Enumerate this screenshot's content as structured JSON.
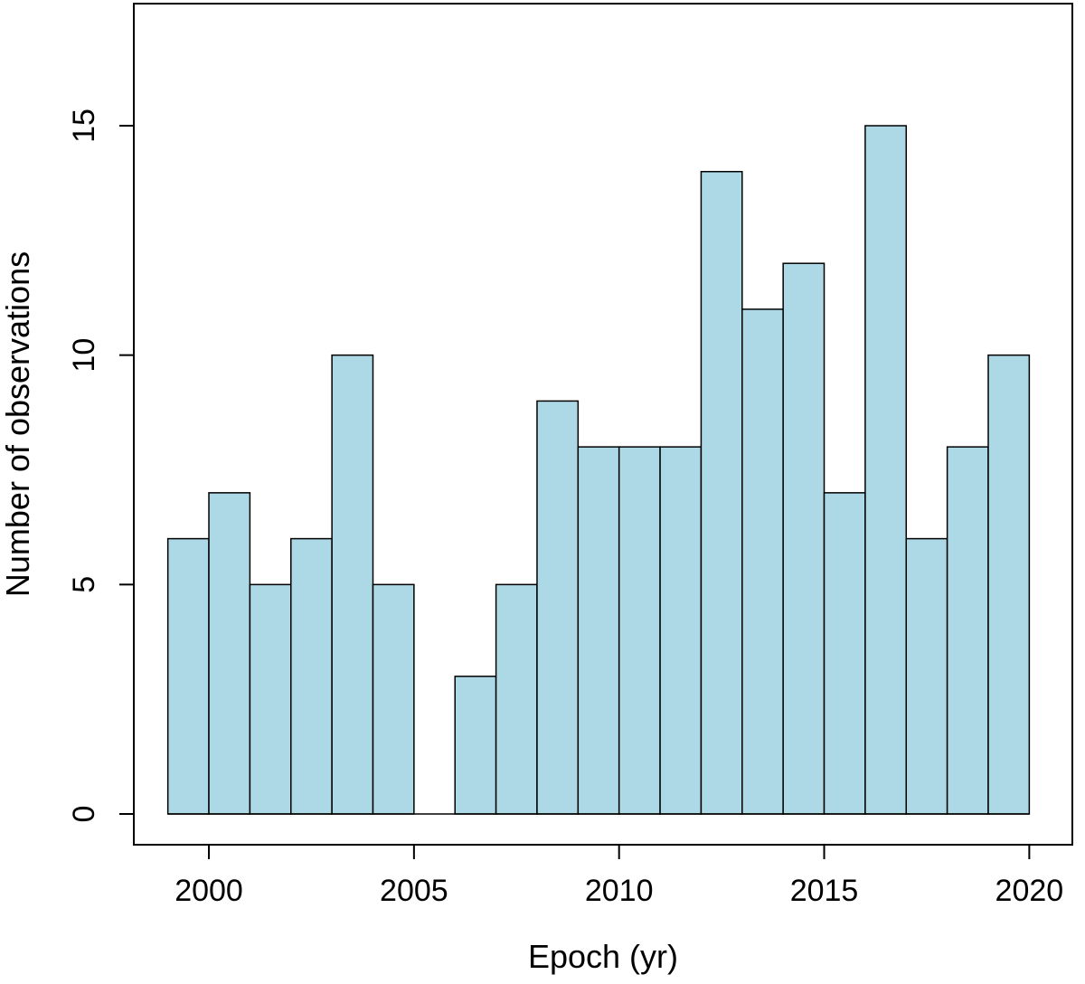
{
  "chart_data": {
    "type": "bar",
    "title": "",
    "xlabel": "Epoch (yr)",
    "ylabel": "Number of observations",
    "bin_width": 1,
    "bins": [
      {
        "start": 1999,
        "end": 2000,
        "value": 6
      },
      {
        "start": 2000,
        "end": 2001,
        "value": 7
      },
      {
        "start": 2001,
        "end": 2002,
        "value": 5
      },
      {
        "start": 2002,
        "end": 2003,
        "value": 6
      },
      {
        "start": 2003,
        "end": 2004,
        "value": 10
      },
      {
        "start": 2004,
        "end": 2005,
        "value": 5
      },
      {
        "start": 2005,
        "end": 2006,
        "value": 0
      },
      {
        "start": 2006,
        "end": 2007,
        "value": 3
      },
      {
        "start": 2007,
        "end": 2008,
        "value": 5
      },
      {
        "start": 2008,
        "end": 2009,
        "value": 9
      },
      {
        "start": 2009,
        "end": 2010,
        "value": 8
      },
      {
        "start": 2010,
        "end": 2011,
        "value": 8
      },
      {
        "start": 2011,
        "end": 2012,
        "value": 8
      },
      {
        "start": 2012,
        "end": 2013,
        "value": 14
      },
      {
        "start": 2013,
        "end": 2014,
        "value": 11
      },
      {
        "start": 2014,
        "end": 2015,
        "value": 12
      },
      {
        "start": 2015,
        "end": 2016,
        "value": 7
      },
      {
        "start": 2016,
        "end": 2017,
        "value": 15
      },
      {
        "start": 2017,
        "end": 2018,
        "value": 6
      },
      {
        "start": 2018,
        "end": 2019,
        "value": 8
      },
      {
        "start": 2019,
        "end": 2020,
        "value": 10
      }
    ],
    "xlim": [
      1998.17,
      2021.05
    ],
    "ylim": [
      0,
      17.6
    ],
    "x_ticks": [
      2000,
      2005,
      2010,
      2015,
      2020
    ],
    "x_tick_labels": [
      "2000",
      "2005",
      "2010",
      "2015",
      "2020"
    ],
    "y_ticks": [
      0,
      5,
      10,
      15
    ],
    "y_tick_labels": [
      "0",
      "5",
      "10",
      "15"
    ],
    "grid": false,
    "legend": "none",
    "colors": {
      "bar_fill": "#add8e6",
      "bar_stroke": "#000000",
      "axis": "#000000"
    }
  }
}
